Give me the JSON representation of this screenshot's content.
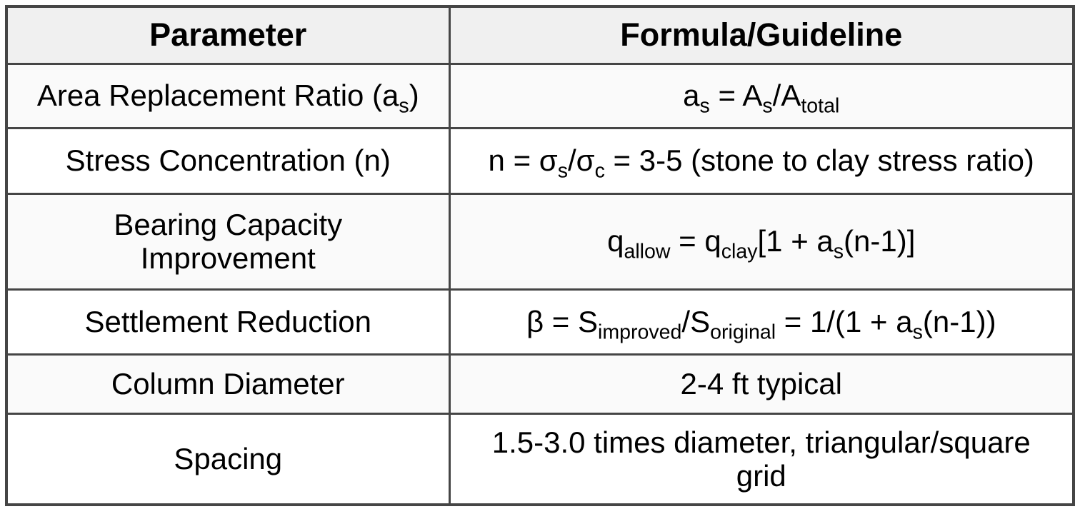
{
  "table": {
    "headers": [
      {
        "label": "Parameter"
      },
      {
        "label": "Formula/Guideline"
      }
    ],
    "rows": [
      {
        "parameter": [
          {
            "t": "Area Replacement Ratio (a"
          },
          {
            "t": "s",
            "sub": true
          },
          {
            "t": ")"
          }
        ],
        "formula": [
          {
            "t": "a"
          },
          {
            "t": "s",
            "sub": true
          },
          {
            "t": " = A"
          },
          {
            "t": "s",
            "sub": true
          },
          {
            "t": "/A"
          },
          {
            "t": "total",
            "sub": true
          }
        ]
      },
      {
        "parameter": [
          {
            "t": "Stress Concentration (n)"
          }
        ],
        "formula": [
          {
            "t": "n = σ"
          },
          {
            "t": "s",
            "sub": true
          },
          {
            "t": "/σ"
          },
          {
            "t": "c",
            "sub": true
          },
          {
            "t": " = 3-5 (stone to clay stress ratio)"
          }
        ]
      },
      {
        "parameter": [
          {
            "t": "Bearing Capacity Improvement"
          }
        ],
        "formula": [
          {
            "t": "q"
          },
          {
            "t": "allow",
            "sub": true
          },
          {
            "t": " = q"
          },
          {
            "t": "clay",
            "sub": true
          },
          {
            "t": "[1 + a"
          },
          {
            "t": "s",
            "sub": true
          },
          {
            "t": "(n-1)]"
          }
        ]
      },
      {
        "parameter": [
          {
            "t": "Settlement Reduction"
          }
        ],
        "formula": [
          {
            "t": "β = S"
          },
          {
            "t": "improved",
            "sub": true
          },
          {
            "t": "/S"
          },
          {
            "t": "original",
            "sub": true
          },
          {
            "t": " = 1/(1 + a"
          },
          {
            "t": "s",
            "sub": true
          },
          {
            "t": "(n-1))"
          }
        ]
      },
      {
        "parameter": [
          {
            "t": "Column Diameter"
          }
        ],
        "formula": [
          {
            "t": "2-4 ft typical"
          }
        ]
      },
      {
        "parameter": [
          {
            "t": "Spacing"
          }
        ],
        "formula": [
          {
            "t": "1.5-3.0 times diameter, triangular/square grid"
          }
        ]
      }
    ],
    "colors": {
      "border": "#454545",
      "header_bg": "#f0f0f0",
      "row_alt_bg": "#fafafa",
      "row_bg": "#ffffff",
      "text": "#000000"
    }
  }
}
